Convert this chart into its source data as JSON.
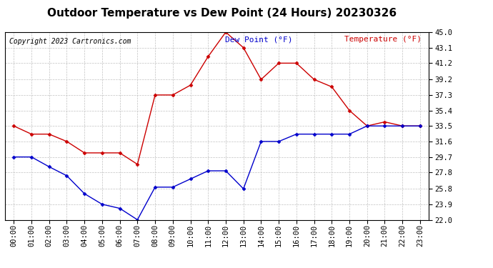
{
  "title": "Outdoor Temperature vs Dew Point (24 Hours) 20230326",
  "copyright": "Copyright 2023 Cartronics.com",
  "legend_dew": "Dew Point (°F)",
  "legend_temp": "Temperature (°F)",
  "hours": [
    "00:00",
    "01:00",
    "02:00",
    "03:00",
    "04:00",
    "05:00",
    "06:00",
    "07:00",
    "08:00",
    "09:00",
    "10:00",
    "11:00",
    "12:00",
    "13:00",
    "14:00",
    "15:00",
    "16:00",
    "17:00",
    "18:00",
    "19:00",
    "20:00",
    "21:00",
    "22:00",
    "23:00"
  ],
  "temperature": [
    33.5,
    32.5,
    32.5,
    31.6,
    30.2,
    30.2,
    30.2,
    28.8,
    37.3,
    37.3,
    38.5,
    42.0,
    45.0,
    43.1,
    39.2,
    41.2,
    41.2,
    39.2,
    38.3,
    35.4,
    33.5,
    34.0,
    33.5,
    33.5
  ],
  "dew_point": [
    29.7,
    29.7,
    28.5,
    27.4,
    25.2,
    23.9,
    23.4,
    22.0,
    26.0,
    26.0,
    27.0,
    28.0,
    28.0,
    25.8,
    31.6,
    31.6,
    32.5,
    32.5,
    32.5,
    32.5,
    33.5,
    33.5,
    33.5,
    33.5
  ],
  "temp_color": "#cc0000",
  "dew_color": "#0000cc",
  "ylim_min": 22.0,
  "ylim_max": 45.0,
  "yticks": [
    22.0,
    23.9,
    25.8,
    27.8,
    29.7,
    31.6,
    33.5,
    35.4,
    37.3,
    39.2,
    41.2,
    43.1,
    45.0
  ],
  "bg_color": "#ffffff",
  "grid_color": "#bbbbbb",
  "title_fontsize": 11,
  "copyright_fontsize": 7,
  "legend_fontsize": 8,
  "tick_fontsize": 7.5
}
